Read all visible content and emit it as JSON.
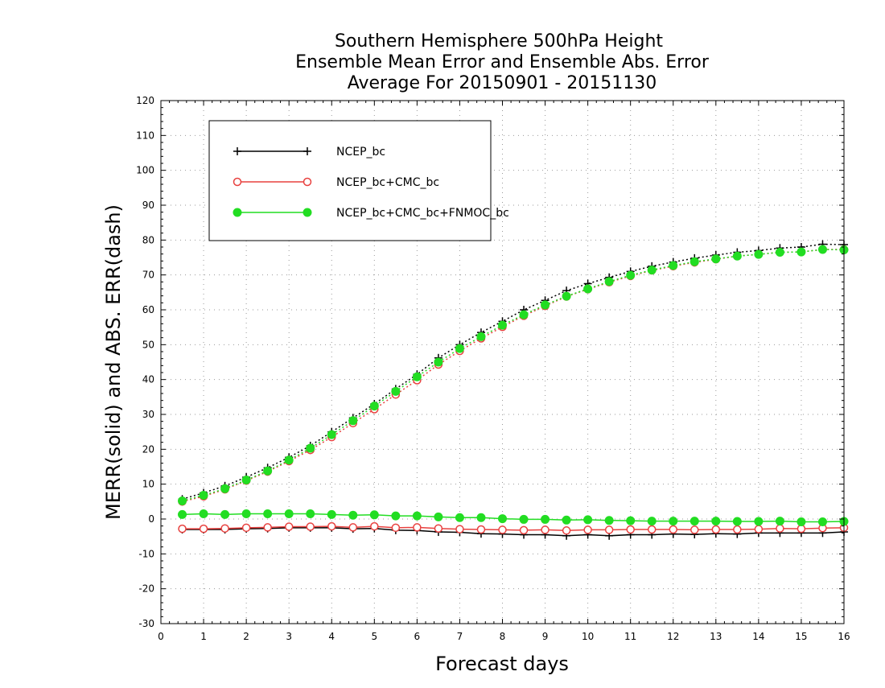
{
  "chart_data": {
    "type": "line",
    "title_lines": [
      "Southern Hemisphere 500hPa Height",
      "Ensemble Mean Error and Ensemble Abs. Error",
      "Average For 20150901 - 20151130"
    ],
    "xlabel": "Forecast days",
    "ylabel": "MERR(solid) and ABS. ERR(dash)",
    "xlim": [
      0,
      16
    ],
    "ylim": [
      -30,
      120
    ],
    "x_ticks": [
      0,
      1,
      2,
      3,
      4,
      5,
      6,
      7,
      8,
      9,
      10,
      11,
      12,
      13,
      14,
      15,
      16
    ],
    "y_ticks": [
      -30,
      -20,
      -10,
      0,
      10,
      20,
      30,
      40,
      50,
      60,
      70,
      80,
      90,
      100,
      110,
      120
    ],
    "grid": true,
    "legend_position": "top-left",
    "x": [
      0.5,
      1,
      1.5,
      2,
      2.5,
      3,
      3.5,
      4,
      4.5,
      5,
      5.5,
      6,
      6.5,
      7,
      7.5,
      8,
      8.5,
      9,
      9.5,
      10,
      10.5,
      11,
      11.5,
      12,
      12.5,
      13,
      13.5,
      14,
      14.5,
      15,
      15.5,
      16
    ],
    "series": [
      {
        "name": "NCEP_bc",
        "color": "#000000",
        "marker": "plus",
        "merr": [
          -3,
          -3,
          -3,
          -2.8,
          -2.7,
          -2.5,
          -2.5,
          -2.5,
          -2.8,
          -2.7,
          -3.2,
          -3.3,
          -3.7,
          -3.8,
          -4.2,
          -4.3,
          -4.5,
          -4.5,
          -4.8,
          -4.5,
          -4.8,
          -4.5,
          -4.5,
          -4.3,
          -4.4,
          -4.2,
          -4.3,
          -4,
          -4,
          -4,
          -4,
          -3.7
        ],
        "abs_err": [
          5.7,
          7.5,
          9.5,
          12,
          14.7,
          17.7,
          21,
          25,
          29,
          33,
          37.3,
          41.5,
          46.2,
          50,
          53.5,
          56.7,
          60,
          62.7,
          65.5,
          67.5,
          69.3,
          71,
          72.5,
          73.7,
          74.8,
          75.7,
          76.5,
          77,
          77.7,
          78,
          78.8,
          78.7
        ]
      },
      {
        "name": "NCEP_bc+CMC_bc",
        "color": "#e8413f",
        "marker": "circle-open",
        "merr": [
          -2.8,
          -2.8,
          -2.7,
          -2.5,
          -2.4,
          -2.2,
          -2.2,
          -2.1,
          -2.4,
          -2.1,
          -2.5,
          -2.4,
          -2.7,
          -2.9,
          -3,
          -3.1,
          -3.2,
          -3.1,
          -3.3,
          -3.1,
          -3.1,
          -3,
          -3,
          -3,
          -3.1,
          -3,
          -3,
          -2.9,
          -2.7,
          -2.8,
          -2.6,
          -2.5
        ],
        "abs_err": [
          5,
          6.5,
          8.5,
          11,
          13.6,
          16.6,
          19.8,
          23.5,
          27.5,
          31.5,
          35.7,
          39.8,
          44.3,
          48.2,
          51.8,
          55.1,
          58.3,
          61.1,
          63.8,
          65.9,
          67.9,
          69.7,
          71.3,
          72.5,
          73.6,
          74.5,
          75.4,
          75.9,
          76.5,
          76.6,
          77.3,
          77.3
        ]
      },
      {
        "name": "NCEP_bc+CMC_bc+FNMOC_bc",
        "color": "#22dd22",
        "marker": "circle-filled",
        "merr": [
          1.3,
          1.5,
          1.3,
          1.5,
          1.5,
          1.5,
          1.5,
          1.3,
          1.1,
          1.2,
          0.9,
          0.9,
          0.6,
          0.4,
          0.4,
          0.1,
          -0.1,
          -0.1,
          -0.3,
          -0.2,
          -0.4,
          -0.5,
          -0.6,
          -0.6,
          -0.6,
          -0.6,
          -0.7,
          -0.7,
          -0.6,
          -0.8,
          -0.8,
          -0.7
        ],
        "abs_err": [
          5.2,
          6.8,
          8.7,
          11.2,
          13.8,
          16.9,
          20.3,
          24.2,
          28.2,
          32.4,
          36.6,
          40.8,
          45,
          48.9,
          52.3,
          55.6,
          58.6,
          61.4,
          63.9,
          66,
          68.1,
          69.9,
          71.4,
          72.7,
          73.8,
          74.6,
          75.4,
          75.9,
          76.5,
          76.6,
          77.3,
          77.2
        ]
      }
    ]
  }
}
